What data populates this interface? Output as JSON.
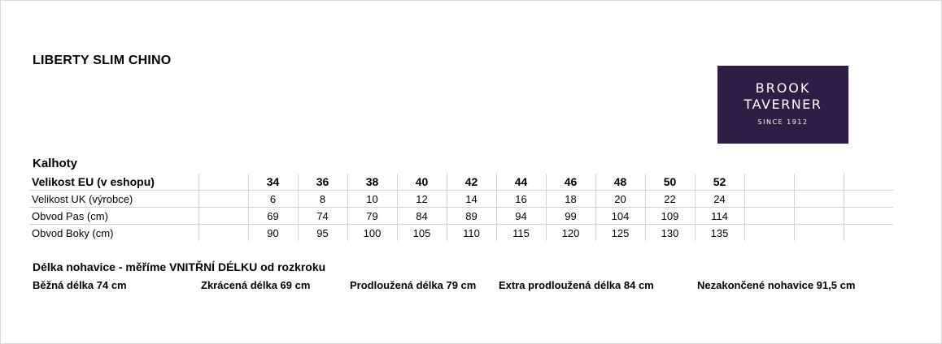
{
  "document": {
    "title": "LIBERTY SLIM CHINO",
    "section_title": "Kalhoty",
    "logo": {
      "line1": "BROOK",
      "line2": "TAVERNER",
      "line3": "SINCE 1912",
      "bg_color": "#2e1d45"
    },
    "table": {
      "header": {
        "label": "Velikost EU (v eshopu)",
        "values": [
          "34",
          "36",
          "38",
          "40",
          "42",
          "44",
          "46",
          "48",
          "50",
          "52"
        ]
      },
      "rows": [
        {
          "label": "Velikost UK (výrobce)",
          "values": [
            "6",
            "8",
            "10",
            "12",
            "14",
            "16",
            "18",
            "20",
            "22",
            "24"
          ]
        },
        {
          "label": "Obvod Pas (cm)",
          "values": [
            "69",
            "74",
            "79",
            "84",
            "89",
            "94",
            "99",
            "104",
            "109",
            "114"
          ]
        },
        {
          "label": "Obvod Boky (cm)",
          "values": [
            "90",
            "95",
            "100",
            "105",
            "110",
            "115",
            "120",
            "125",
            "130",
            "135"
          ]
        }
      ]
    },
    "legend": {
      "title": "Délka nohavice - měříme VNITŘNÍ DÉLKU od rozkroku",
      "items": [
        "Běžná délka 74 cm",
        "Zkrácená délka 69 cm",
        "Prodloužená délka 79 cm",
        "Extra prodloužená délka 84 cm",
        "Nezakončené nohavice 91,5 cm"
      ]
    }
  }
}
